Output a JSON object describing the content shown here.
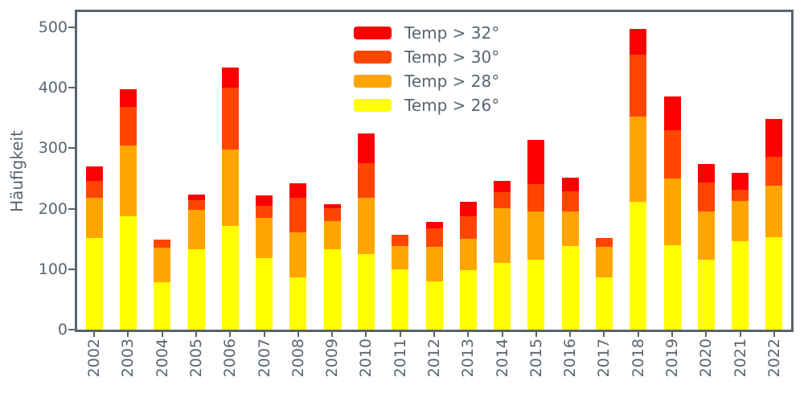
{
  "chart_data": {
    "type": "bar",
    "stacked": true,
    "title": "",
    "xlabel": "",
    "ylabel": "Häufigkeit",
    "categories": [
      "2002",
      "2003",
      "2004",
      "2005",
      "2006",
      "2007",
      "2008",
      "2009",
      "2010",
      "2011",
      "2012",
      "2013",
      "2014",
      "2015",
      "2016",
      "2017",
      "2018",
      "2019",
      "2020",
      "2021",
      "2022"
    ],
    "series": [
      {
        "name": "Temp > 26°",
        "color": "#ffff00",
        "values": [
          152,
          187,
          78,
          133,
          171,
          119,
          86,
          133,
          125,
          100,
          80,
          98,
          110,
          116,
          138,
          86,
          211,
          140,
          116,
          146,
          153
        ]
      },
      {
        "name": "Temp > 28°",
        "color": "#ffa500",
        "values": [
          66,
          117,
          58,
          65,
          127,
          66,
          75,
          47,
          93,
          38,
          57,
          52,
          91,
          79,
          57,
          51,
          141,
          110,
          80,
          67,
          85
        ]
      },
      {
        "name": "Temp > 30°",
        "color": "#ff4500",
        "values": [
          28,
          65,
          13,
          16,
          102,
          20,
          57,
          21,
          57,
          19,
          31,
          38,
          26,
          46,
          34,
          15,
          103,
          80,
          48,
          19,
          48
        ]
      },
      {
        "name": "Temp > 32°",
        "color": "#fa0000",
        "values": [
          24,
          29,
          0,
          10,
          34,
          17,
          24,
          6,
          50,
          0,
          10,
          23,
          19,
          73,
          22,
          0,
          43,
          55,
          30,
          28,
          63
        ]
      }
    ],
    "totals": [
      270,
      398,
      149,
      224,
      434,
      222,
      242,
      207,
      325,
      157,
      178,
      211,
      246,
      314,
      251,
      152,
      498,
      385,
      274,
      260,
      349
    ],
    "ylim": [
      0,
      525
    ],
    "yticks": [
      0,
      100,
      200,
      300,
      400,
      500
    ],
    "grid": false,
    "legend_position": "upper center, frameless, reversed order (32,30,28,26)",
    "axis_color": "#5a6470"
  }
}
